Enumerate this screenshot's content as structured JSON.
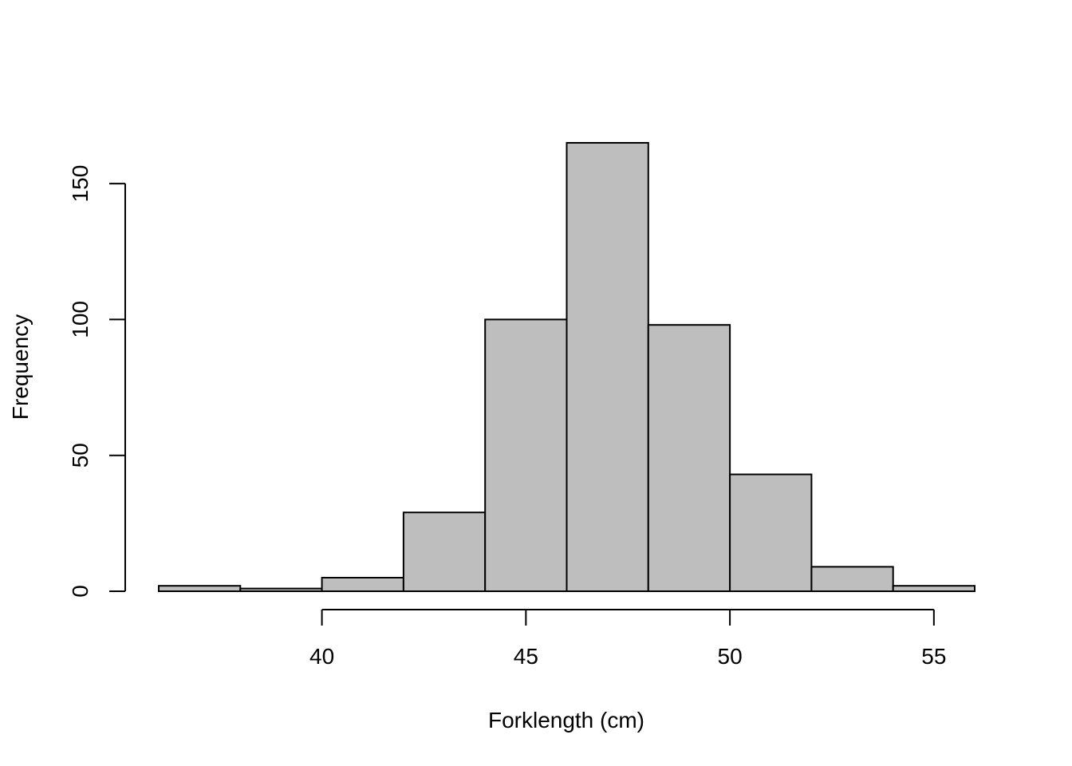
{
  "chart_data": {
    "type": "bar",
    "title": "",
    "xlabel": "Forklength (cm)",
    "ylabel": "Frequency",
    "bin_edges": [
      36,
      38,
      40,
      42,
      44,
      46,
      48,
      50,
      52,
      54,
      56
    ],
    "values": [
      2,
      1,
      5,
      29,
      100,
      165,
      98,
      43,
      9,
      2
    ],
    "xlim": [
      36,
      56
    ],
    "ylim": [
      0,
      165
    ],
    "xticks": [
      40,
      45,
      50,
      55
    ],
    "yticks": [
      0,
      50,
      100,
      150
    ],
    "bar_color": "#bebebe",
    "grid": false,
    "legend": "none"
  }
}
